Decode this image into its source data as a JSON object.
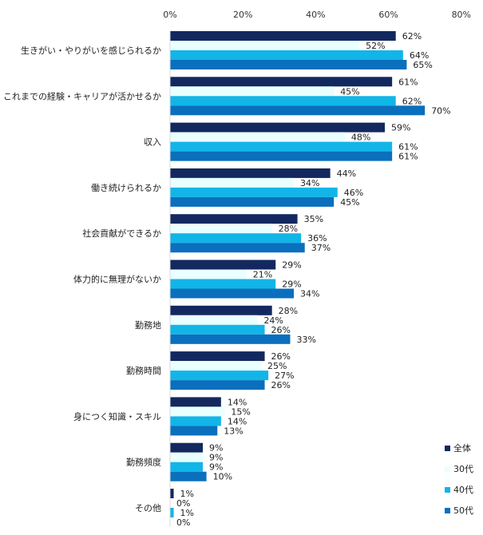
{
  "chart_data": {
    "type": "bar",
    "orientation": "horizontal",
    "x_ticks": [
      "0%",
      "20%",
      "40%",
      "60%",
      "80%"
    ],
    "xlim": [
      0,
      80
    ],
    "unit": "%",
    "grid": false,
    "legend_position": "bottom-right",
    "categories": [
      "生きがい・やりがいを感じられるか",
      "これまでの経験・キャリアが活かせるか",
      "収入",
      "働き続けられるか",
      "社会貢献ができるか",
      "体力的に無理がないか",
      "勤務地",
      "勤務時間",
      "身につく知識・スキル",
      "勤務頻度",
      "その他"
    ],
    "series": [
      {
        "name": "全体",
        "color": "#12285f",
        "values": [
          62,
          61,
          59,
          44,
          35,
          29,
          28,
          26,
          14,
          9,
          1
        ]
      },
      {
        "name": "30代",
        "color": "#eaffff",
        "values": [
          52,
          45,
          48,
          34,
          28,
          21,
          24,
          25,
          15,
          9,
          0
        ]
      },
      {
        "name": "40代",
        "color": "#12b5e8",
        "values": [
          64,
          62,
          61,
          46,
          36,
          29,
          26,
          27,
          14,
          9,
          1
        ]
      },
      {
        "name": "50代",
        "color": "#0a6fbd",
        "values": [
          65,
          70,
          61,
          45,
          37,
          34,
          33,
          26,
          13,
          10,
          0
        ]
      }
    ]
  }
}
